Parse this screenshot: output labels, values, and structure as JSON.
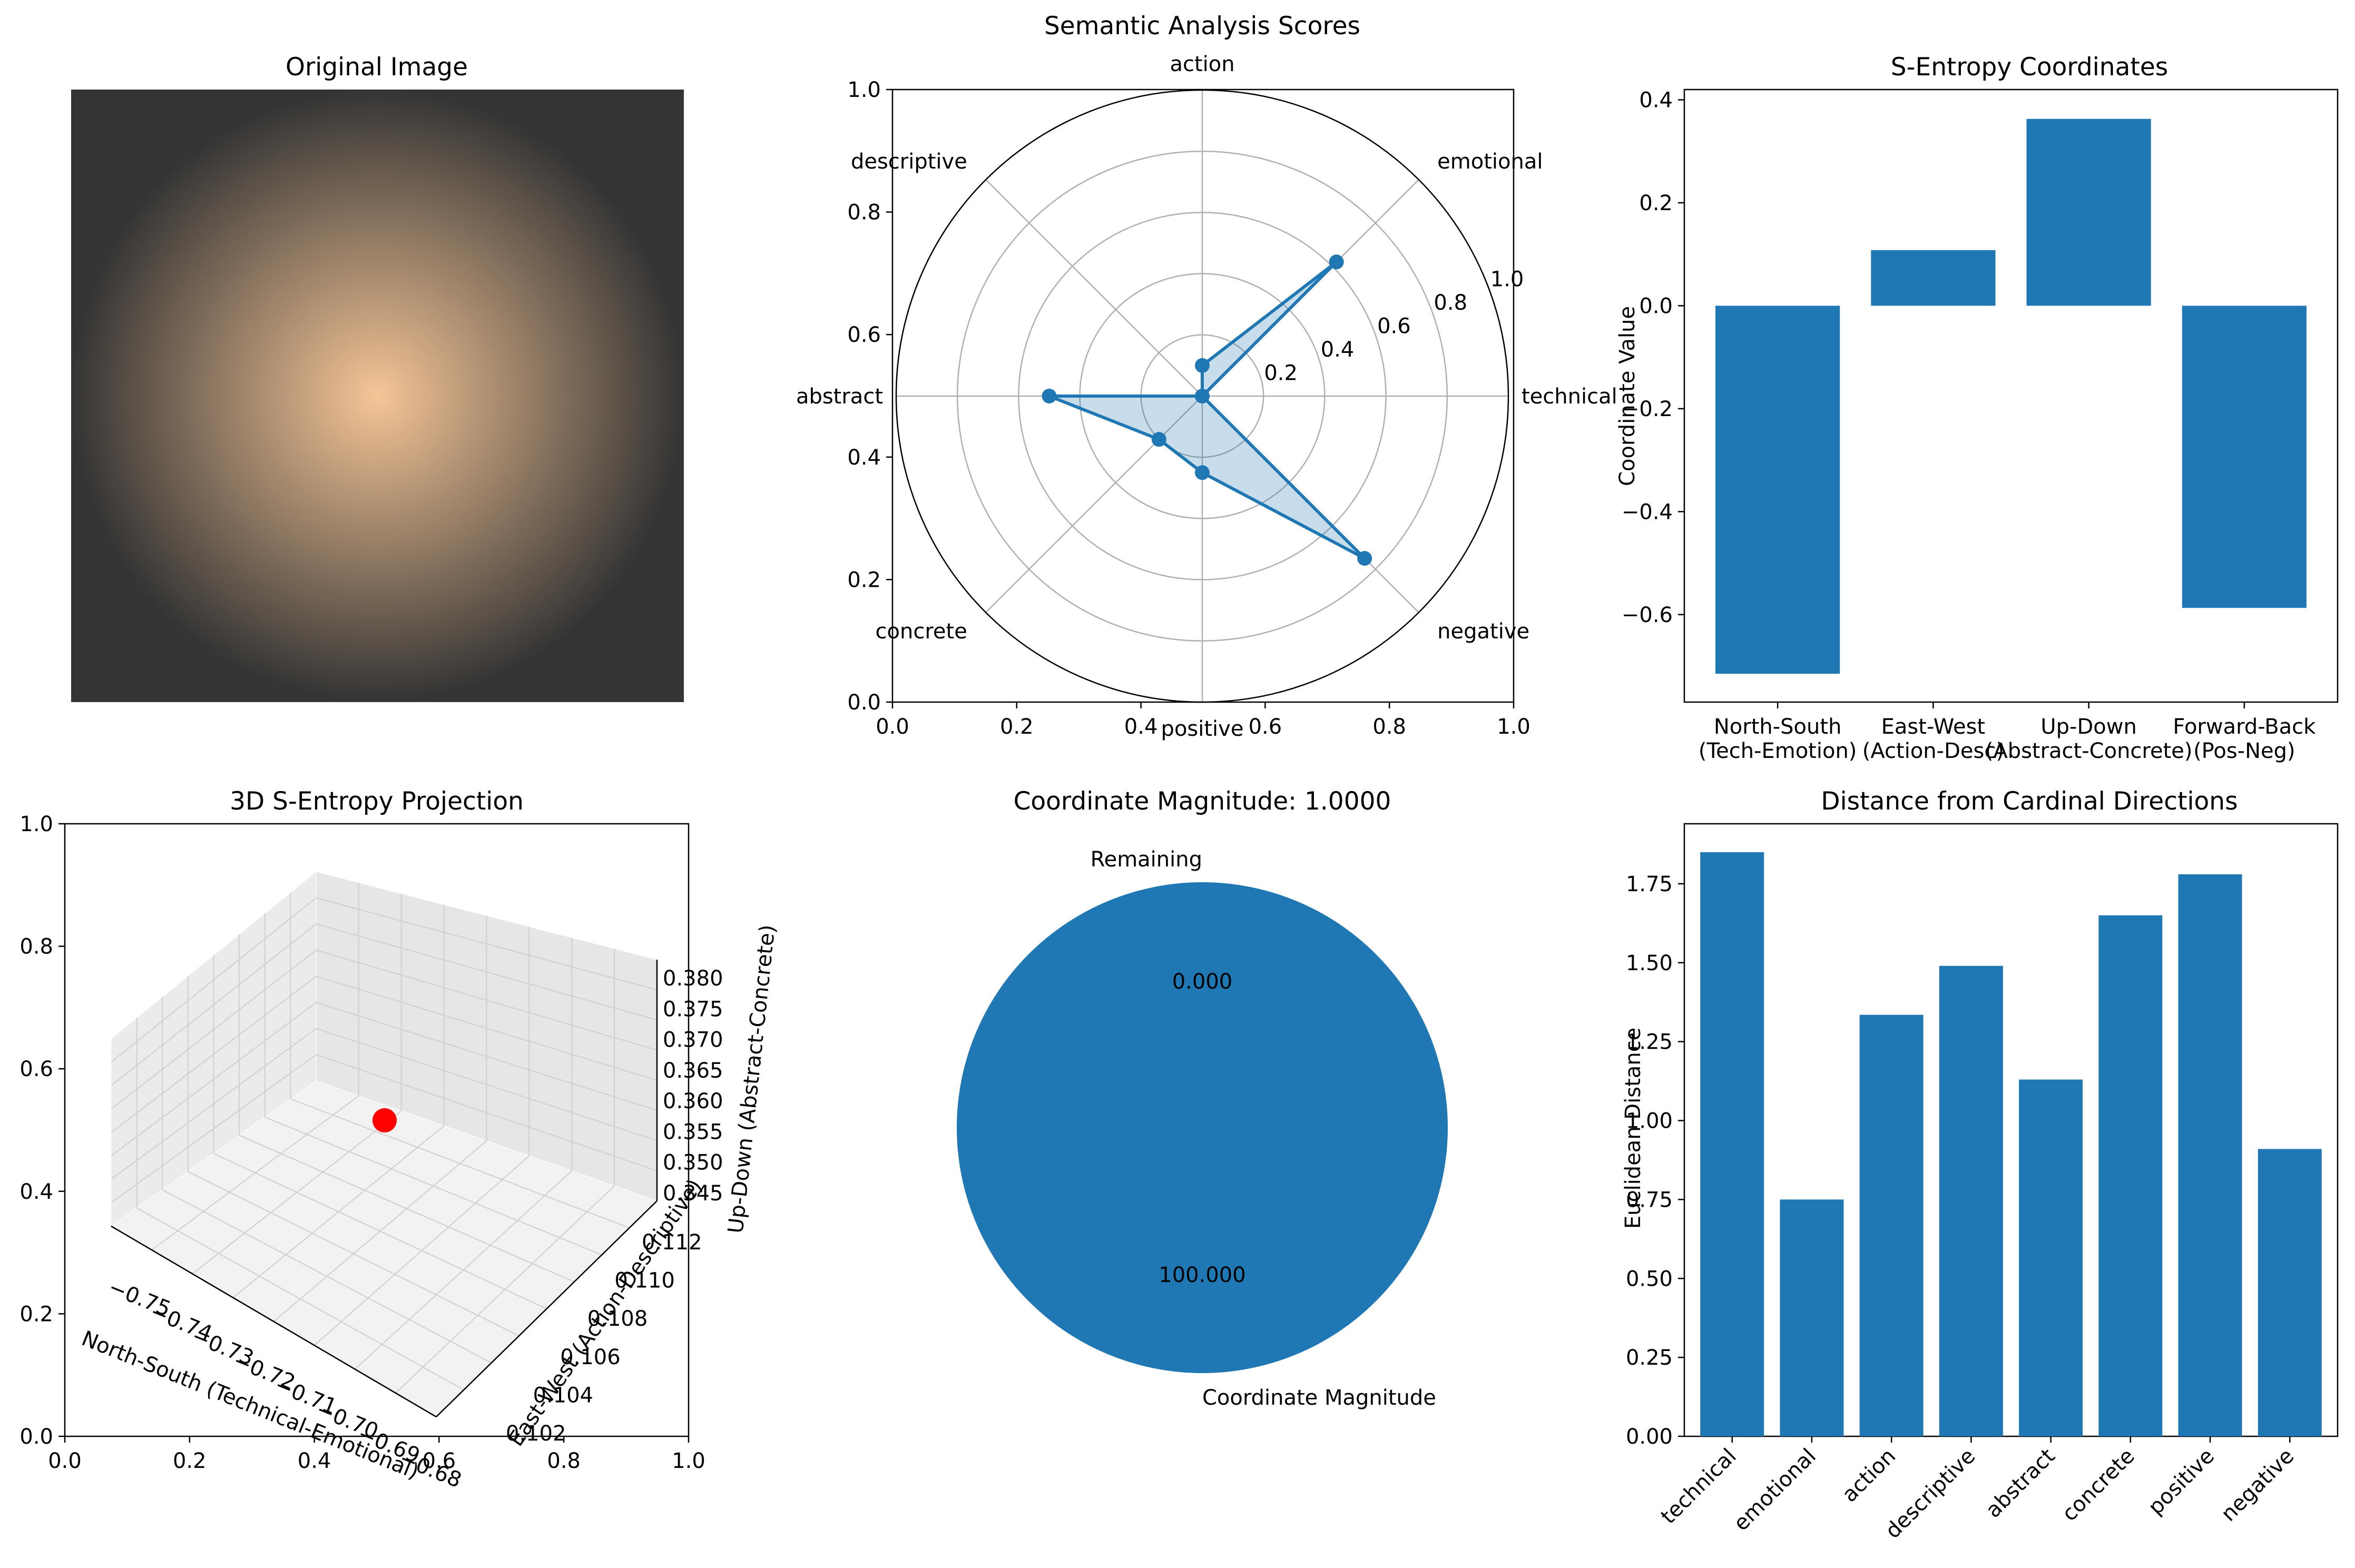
{
  "figure": {
    "bg": "#ffffff",
    "series_color": "#1f77b4"
  },
  "chart_data": [
    {
      "type": "image",
      "title": "Original Image",
      "colors": {
        "center": "#f5c596",
        "edge": "#343434"
      }
    },
    {
      "type": "radar",
      "title": "Semantic Analysis Scores",
      "categories": [
        "technical",
        "emotional",
        "action",
        "descriptive",
        "abstract",
        "concrete",
        "positive",
        "negative"
      ],
      "values": [
        0.0,
        0.62,
        0.1,
        0.0,
        0.5,
        0.2,
        0.25,
        0.75
      ],
      "rlim": [
        0,
        1.0
      ],
      "rticks": [
        "0.2",
        "0.4",
        "0.6",
        "0.8",
        "1.0"
      ],
      "frame_xticks": [
        "0.0",
        "0.2",
        "0.4",
        "0.6",
        "0.8",
        "1.0"
      ],
      "frame_yticks": [
        "0.0",
        "0.2",
        "0.4",
        "0.6",
        "0.8",
        "1.0"
      ]
    },
    {
      "type": "bar",
      "title": "S-Entropy Coordinates",
      "categories": [
        "North-South\n(Tech-Emotion)",
        "East-West\n(Action-Desc)",
        "Up-Down\n(Abstract-Concrete)",
        "Forward-Back\n(Pos-Neg)"
      ],
      "values": [
        -0.715,
        0.108,
        0.363,
        -0.587
      ],
      "ylabel": "Coordinate Value",
      "ylim": [
        -0.77,
        0.42
      ],
      "yticks": [
        "0.4",
        "0.2",
        "0.0",
        "−0.2",
        "−0.4",
        "−0.6"
      ]
    },
    {
      "type": "scatter3d",
      "title": "3D S-Entropy Projection",
      "xlabel": "North-South (Technical-Emotional)",
      "ylabel": "East-West (Action-Descriptive)",
      "zlabel": "Up-Down (Abstract-Concrete)",
      "point": {
        "x": -0.715,
        "y": 0.108,
        "z": 0.363,
        "color": "#ff0000"
      },
      "xticks": [
        "−0.75",
        "−0.74",
        "−0.73",
        "−0.72",
        "−0.71",
        "−0.70",
        "−0.69",
        "−0.68"
      ],
      "yticks": [
        "0.102",
        "0.104",
        "0.106",
        "0.108",
        "0.110",
        "0.112"
      ],
      "zticks": [
        "0.345",
        "0.350",
        "0.355",
        "0.360",
        "0.365",
        "0.370",
        "0.375",
        "0.380"
      ],
      "frame_xticks": [
        "0.0",
        "0.2",
        "0.4",
        "0.6",
        "0.8",
        "1.0"
      ],
      "frame_yticks": [
        "0.0",
        "0.2",
        "0.4",
        "0.6",
        "0.8",
        "1.0"
      ]
    },
    {
      "type": "pie",
      "title": "Coordinate Magnitude: 1.0000",
      "labels": [
        "Coordinate Magnitude",
        "Remaining"
      ],
      "values": [
        100.0,
        0.0
      ],
      "autopct": [
        "100.000",
        "0.000"
      ]
    },
    {
      "type": "bar",
      "title": "Distance from Cardinal Directions",
      "categories": [
        "technical",
        "emotional",
        "action",
        "descriptive",
        "abstract",
        "concrete",
        "positive",
        "negative"
      ],
      "values": [
        1.85,
        0.75,
        1.335,
        1.49,
        1.13,
        1.65,
        1.78,
        0.91
      ],
      "ylabel": "Euclidean Distance",
      "ylim": [
        0,
        1.94
      ],
      "yticks": [
        "0.00",
        "0.25",
        "0.50",
        "0.75",
        "1.00",
        "1.25",
        "1.50",
        "1.75"
      ]
    }
  ]
}
